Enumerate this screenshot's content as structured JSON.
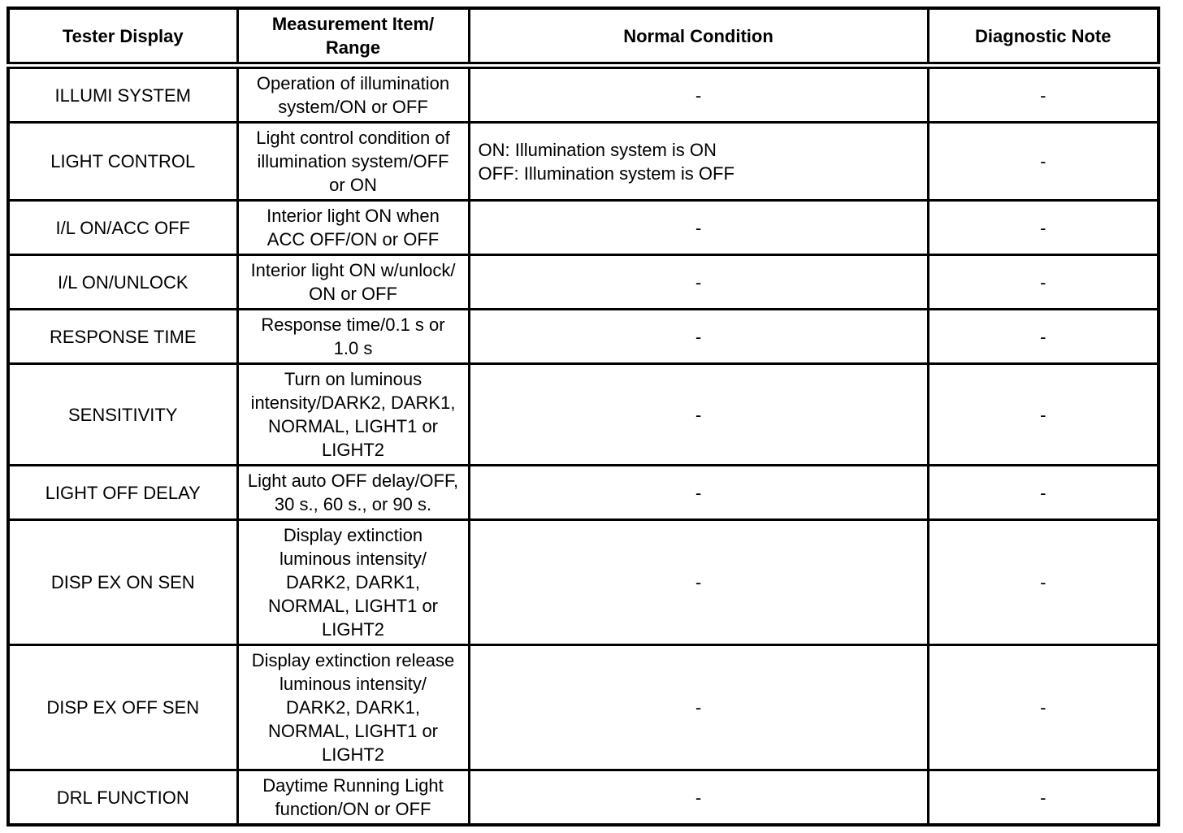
{
  "table": {
    "columns": [
      {
        "key": "tester_display",
        "label": "Tester Display"
      },
      {
        "key": "measurement_item_range",
        "label": "Measurement Item/\nRange"
      },
      {
        "key": "normal_condition",
        "label": "Normal Condition"
      },
      {
        "key": "diagnostic_note",
        "label": "Diagnostic Note"
      }
    ],
    "rows": [
      {
        "tester_display": "ILLUMI SYSTEM",
        "measurement_item_range": "Operation of illumination\nsystem/ON or OFF",
        "normal_condition": "-",
        "normal_condition_align": "center",
        "diagnostic_note": "-"
      },
      {
        "tester_display": "LIGHT CONTROL",
        "measurement_item_range": "Light control condition of\nillumination system/OFF\nor ON",
        "normal_condition": "ON: Illumination system is ON\nOFF: Illumination system is OFF",
        "normal_condition_align": "left",
        "diagnostic_note": "-"
      },
      {
        "tester_display": "I/L ON/ACC OFF",
        "measurement_item_range": "Interior light ON when\nACC OFF/ON or OFF",
        "normal_condition": "-",
        "normal_condition_align": "center",
        "diagnostic_note": "-"
      },
      {
        "tester_display": "I/L ON/UNLOCK",
        "measurement_item_range": "Interior light ON w/unlock/\nON or OFF",
        "normal_condition": "-",
        "normal_condition_align": "center",
        "diagnostic_note": "-"
      },
      {
        "tester_display": "RESPONSE TIME",
        "measurement_item_range": "Response time/0.1 s or\n1.0 s",
        "normal_condition": "-",
        "normal_condition_align": "center",
        "diagnostic_note": "-"
      },
      {
        "tester_display": "SENSITIVITY",
        "measurement_item_range": "Turn on luminous\nintensity/DARK2, DARK1,\nNORMAL, LIGHT1 or\nLIGHT2",
        "normal_condition": "-",
        "normal_condition_align": "center",
        "diagnostic_note": "-"
      },
      {
        "tester_display": "LIGHT OFF DELAY",
        "measurement_item_range": "Light auto OFF delay/OFF,\n30 s., 60 s., or 90 s.",
        "normal_condition": "-",
        "normal_condition_align": "center",
        "diagnostic_note": "-"
      },
      {
        "tester_display": "DISP EX ON SEN",
        "measurement_item_range": "Display extinction\nluminous intensity/\nDARK2, DARK1,\nNORMAL, LIGHT1 or\nLIGHT2",
        "normal_condition": "-",
        "normal_condition_align": "center",
        "diagnostic_note": "-"
      },
      {
        "tester_display": "DISP EX OFF SEN",
        "measurement_item_range": "Display extinction release\nluminous intensity/\nDARK2, DARK1,\nNORMAL, LIGHT1 or\nLIGHT2",
        "normal_condition": "-",
        "normal_condition_align": "center",
        "diagnostic_note": "-"
      },
      {
        "tester_display": "DRL FUNCTION",
        "measurement_item_range": "Daytime Running Light\nfunction/ON or OFF",
        "normal_condition": "-",
        "normal_condition_align": "center",
        "diagnostic_note": "-"
      }
    ]
  }
}
